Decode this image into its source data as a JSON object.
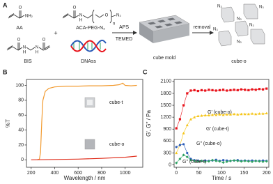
{
  "scheme": {
    "panel": "A",
    "aa": {
      "label": "AA",
      "atoms": [
        "O",
        "NH₂"
      ]
    },
    "plus": "+",
    "aca": {
      "label": "ACA-PEG-N₃",
      "atoms": [
        "O",
        "N",
        "H",
        "O",
        "n",
        "N₃"
      ]
    },
    "bis": {
      "label": "BIS",
      "atoms": [
        "O",
        "N",
        "H",
        "N",
        "H",
        "O"
      ]
    },
    "dna": {
      "label": "DNAss"
    },
    "reagents": [
      "APS",
      "TEMED"
    ],
    "mold": {
      "label": "cube mold"
    },
    "step": "removal",
    "product": {
      "label": "cube-o",
      "atoms": [
        "N₃",
        "N₃",
        "N₃",
        "N₃",
        "N₃",
        "N₃"
      ]
    }
  },
  "chart_data": [
    {
      "type": "line",
      "panel": "B",
      "x_label": "Wavelength / nm",
      "y_label": "%T",
      "xlim": [
        160,
        1150
      ],
      "ylim": [
        -10,
        108
      ],
      "xticks": [
        200,
        400,
        600,
        800,
        1000
      ],
      "yticks": [
        0,
        20,
        40,
        60,
        80,
        100
      ],
      "series": [
        {
          "name": "cube-t",
          "color": "#f29a2e",
          "x": [
            250,
            270,
            280,
            290,
            300,
            320,
            350,
            400,
            500,
            600,
            700,
            800,
            900,
            950,
            980,
            1000,
            1050,
            1100
          ],
          "values": [
            0,
            1,
            10,
            50,
            80,
            92,
            96,
            98,
            99,
            99,
            99.5,
            99.5,
            100,
            101,
            103,
            100,
            99.5,
            100
          ]
        },
        {
          "name": "cube-o",
          "color": "#e0301e",
          "x": [
            200,
            400,
            600,
            800,
            1000,
            1100
          ],
          "values": [
            0,
            0.5,
            1,
            2,
            3.5,
            5
          ]
        }
      ]
    },
    {
      "type": "scatter",
      "panel": "C",
      "x_label": "Time / s",
      "y_label": "G', G'' / Pa",
      "xlim": [
        -5,
        205
      ],
      "ylim": [
        -60,
        2150
      ],
      "xticks": [
        0,
        50,
        100,
        150,
        200
      ],
      "yticks": [
        0,
        300,
        600,
        900,
        1200,
        1500,
        1800,
        2100
      ],
      "x": [
        0,
        8,
        16,
        24,
        32,
        40,
        48,
        56,
        64,
        72,
        80,
        88,
        96,
        104,
        112,
        120,
        128,
        136,
        144,
        152,
        160,
        168,
        176,
        184,
        192,
        200
      ],
      "series": [
        {
          "name": "G' (cube-o)",
          "color": "#e8141c",
          "marker": "square",
          "values": [
            920,
            1150,
            1500,
            1800,
            1870,
            1880,
            1860,
            1880,
            1870,
            1890,
            1880,
            1870,
            1880,
            1890,
            1870,
            1880,
            1890,
            1880,
            1900,
            1890,
            1880,
            1900,
            1890,
            1910,
            1900,
            1920
          ]
        },
        {
          "name": "G' (cube-t)",
          "color": "#f5c518",
          "marker": "triangle",
          "values": [
            300,
            500,
            800,
            1000,
            1150,
            1200,
            1230,
            1240,
            1250,
            1250,
            1260,
            1260,
            1270,
            1260,
            1270,
            1270,
            1280,
            1270,
            1280,
            1280,
            1280,
            1290,
            1280,
            1290,
            1290,
            1300
          ]
        },
        {
          "name": "G\" (cube-o)",
          "color": "#2a5cb8",
          "marker": "circle",
          "values": [
            450,
            500,
            520,
            300,
            150,
            120,
            110,
            100,
            110,
            100,
            110,
            130,
            100,
            120,
            110,
            100,
            110,
            120,
            100,
            110,
            100,
            110,
            100,
            100,
            110,
            100
          ]
        },
        {
          "name": "G\" (cube-t)",
          "color": "#2aa060",
          "marker": "diamond",
          "values": [
            50,
            150,
            250,
            200,
            120,
            100,
            90,
            100,
            80,
            90,
            120,
            100,
            90,
            60,
            80,
            100,
            110,
            100,
            90,
            100,
            90,
            80,
            100,
            90,
            80,
            90
          ]
        }
      ]
    }
  ]
}
